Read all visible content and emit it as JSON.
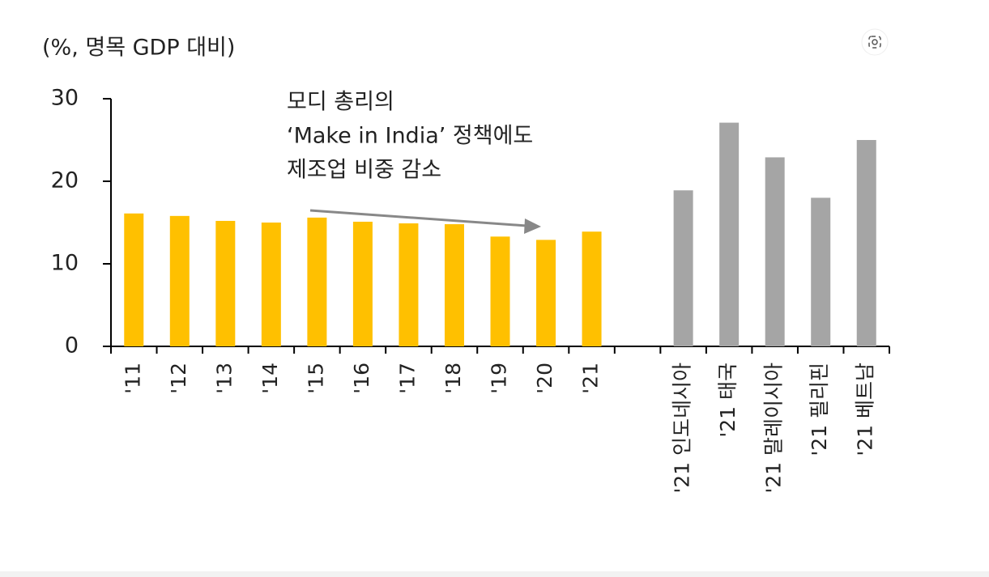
{
  "chart_data": {
    "type": "bar",
    "y_label": "(%, 명목 GDP 대비)",
    "annotation": [
      "모디 총리의",
      "‘Make in India’ 정책에도",
      "제조업 비중 감소"
    ],
    "categories": [
      "'11",
      "'12",
      "'13",
      "'14",
      "'15",
      "'16",
      "'17",
      "'18",
      "'19",
      "'20",
      "'21",
      null,
      "'21 인도네시아",
      "'21 태국",
      "'21 말레이시아",
      "'21 필리핀",
      "'21 베트남"
    ],
    "values": [
      16.1,
      15.8,
      15.2,
      15.0,
      15.6,
      15.1,
      14.9,
      14.8,
      13.3,
      12.9,
      13.9,
      null,
      18.9,
      27.1,
      22.9,
      18.0,
      25.0
    ],
    "colors": [
      "#FFC000",
      "#FFC000",
      "#FFC000",
      "#FFC000",
      "#FFC000",
      "#FFC000",
      "#FFC000",
      "#FFC000",
      "#FFC000",
      "#FFC000",
      "#FFC000",
      null,
      "#A5A5A5",
      "#A5A5A5",
      "#A5A5A5",
      "#A5A5A5",
      "#A5A5A5"
    ],
    "ylim": [
      0,
      30
    ],
    "yticks": [
      0,
      10,
      20,
      30
    ]
  }
}
